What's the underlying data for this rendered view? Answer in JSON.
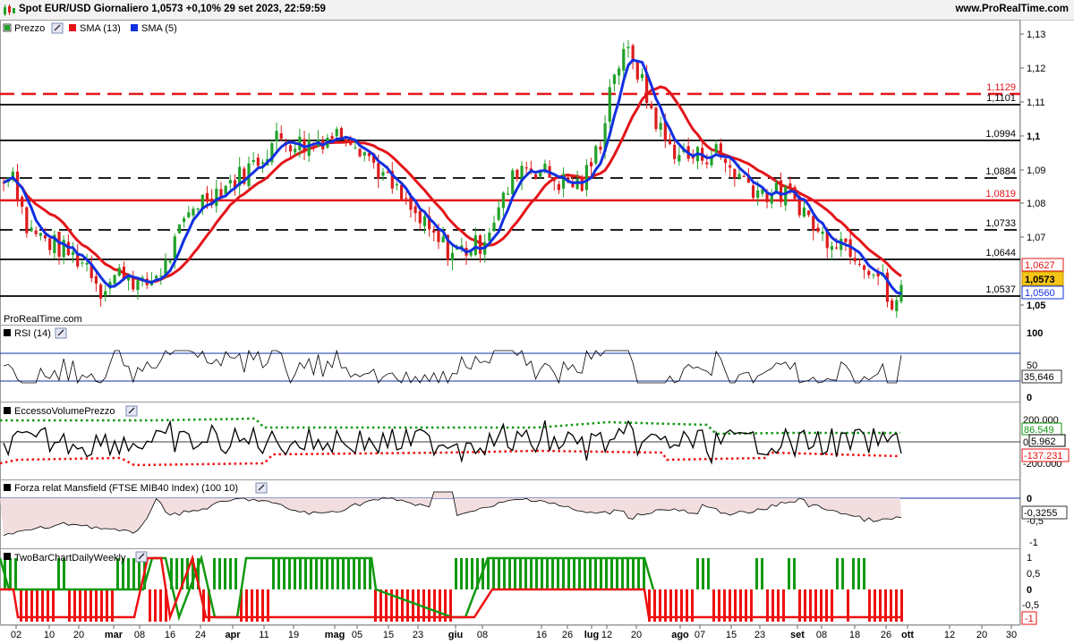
{
  "header": {
    "title": "Spot EUR/USD Giornaliero 1,0573 +0,10% 29 set 2023, 22:59:59",
    "brand": "www.ProRealTime.com"
  },
  "colors": {
    "bull": "#22a22a",
    "bear": "#dd1c1c",
    "sma13": "#e3151a",
    "sma5": "#1230e0",
    "pos": "#119911",
    "neg": "#ee1111",
    "mansfill": "#f2dede"
  },
  "price_panel": {
    "legend": [
      {
        "name": "Prezzo",
        "color": "#22a22a"
      },
      {
        "name": "SMA (13)",
        "color": "#e3151a"
      },
      {
        "name": "SMA (5)",
        "color": "#1230e0"
      }
    ],
    "watermark": "ProRealTime.com",
    "ticks": [
      "1,13",
      "1,12",
      "1,11",
      "1,1",
      "1,09",
      "1,08",
      "1,07",
      "1,05"
    ],
    "levels": [
      {
        "value": "1,1129",
        "color": "#e3151a",
        "dashed": true,
        "thick": true,
        "label_color": "#e3151a"
      },
      {
        "value": "1,1101",
        "color": "#000000",
        "dashed": false,
        "thick": false,
        "label_color": "#000000"
      },
      {
        "value": "1,0994",
        "color": "#000000",
        "dashed": false,
        "thick": false,
        "label_color": "#000000"
      },
      {
        "value": "1,0884",
        "color": "#000000",
        "dashed": true,
        "thick": false,
        "label_color": "#000000"
      },
      {
        "value": "1,0819",
        "color": "#e3151a",
        "dashed": false,
        "thick": true,
        "label_color": "#e3151a"
      },
      {
        "value": "1,0733",
        "color": "#000000",
        "dashed": true,
        "thick": false,
        "label_color": "#000000"
      },
      {
        "value": "1,0644",
        "color": "#000000",
        "dashed": false,
        "thick": false,
        "label_color": "#000000"
      },
      {
        "value": "1,0537",
        "color": "#000000",
        "dashed": false,
        "thick": false,
        "label_color": "#000000"
      }
    ],
    "badges": {
      "sma13": "1,0627",
      "price": "1,0573",
      "sma5": "1,0560"
    }
  },
  "rsi_panel": {
    "legend": "RSI (14)",
    "ticks": [
      "100",
      "50",
      "0"
    ],
    "value": "35,646"
  },
  "volume_panel": {
    "legend": "EccessoVolumePrezzo",
    "ticks": [
      "200.000",
      "0",
      "-200.000"
    ],
    "values": [
      "86.549",
      "5.962",
      "-137.231"
    ]
  },
  "mansfield_panel": {
    "legend": "Forza relat Mansfield (FTSE MIB40 Index) (100 10)",
    "ticks": [
      "0",
      "-0,5",
      "-1"
    ],
    "value": "-0,3255"
  },
  "twobar_panel": {
    "legend": "TwoBarChartDailyWeekly",
    "ticks": [
      "1",
      "0,5",
      "0",
      "-0,5",
      "-1"
    ],
    "value": "-1"
  },
  "x_axis": {
    "labels": [
      "02",
      "10",
      "20",
      "mar",
      "08",
      "16",
      "24",
      "apr",
      "11",
      "19",
      "mag",
      "05",
      "15",
      "23",
      "giu",
      "08",
      "16",
      "26",
      "lug",
      "12",
      "20",
      "ago",
      "07",
      "15",
      "23",
      "set",
      "08",
      "18",
      "26",
      "ott",
      "12",
      "20",
      "30"
    ]
  }
}
